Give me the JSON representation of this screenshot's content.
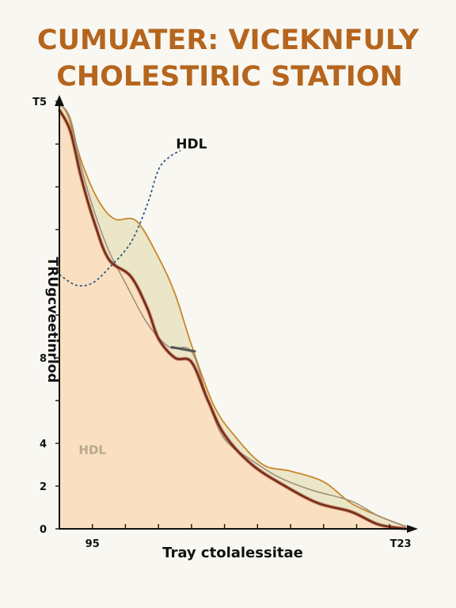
{
  "chart_data": {
    "type": "area",
    "title_lines": [
      "CUMUATER: VICEKNFULY",
      "CHOLESTIRIC STATION"
    ],
    "xlabel": "Tray ctolalessitae",
    "ylabel": "TRUgcveetinrlod",
    "x_tick_labels": [
      {
        "x": 95,
        "label": "95"
      },
      {
        "x": 123,
        "label": "T23"
      }
    ],
    "y_tick_labels": [
      {
        "y": 0,
        "label": "0"
      },
      {
        "y": 2,
        "label": "2"
      },
      {
        "y": 4,
        "label": "4"
      },
      {
        "y": 8,
        "label": "8"
      },
      {
        "y": 20,
        "label": "T5"
      }
    ],
    "xlim": [
      92,
      124
    ],
    "ylim": [
      0,
      20
    ],
    "annotations": [
      {
        "text": "HDL",
        "x": 104,
        "y": 17.8,
        "color": "#111111"
      },
      {
        "text": "HDL",
        "x": 95,
        "y": 3.5,
        "color": "#b8a88e"
      }
    ],
    "series": [
      {
        "name": "",
        "role": "upper-band",
        "color": "#c9872a",
        "values": [
          {
            "x": 92.0,
            "y": 19.9
          },
          {
            "x": 92.8,
            "y": 19.3
          },
          {
            "x": 94.0,
            "y": 17.2
          },
          {
            "x": 95.5,
            "y": 15.4
          },
          {
            "x": 97.0,
            "y": 14.5
          },
          {
            "x": 99.0,
            "y": 14.4
          },
          {
            "x": 101.0,
            "y": 12.7
          },
          {
            "x": 102.5,
            "y": 11.0
          },
          {
            "x": 104.0,
            "y": 8.6
          },
          {
            "x": 106.0,
            "y": 5.8
          },
          {
            "x": 108.0,
            "y": 4.3
          },
          {
            "x": 110.5,
            "y": 3.0
          },
          {
            "x": 113.0,
            "y": 2.7
          },
          {
            "x": 116.0,
            "y": 2.2
          },
          {
            "x": 118.5,
            "y": 1.2
          },
          {
            "x": 121.0,
            "y": 0.6
          },
          {
            "x": 123.5,
            "y": 0.1
          }
        ]
      },
      {
        "name": "",
        "role": "middle-line",
        "color": "#9a8c7a",
        "values": [
          {
            "x": 92.0,
            "y": 19.9
          },
          {
            "x": 93.0,
            "y": 19.2
          },
          {
            "x": 94.0,
            "y": 16.9
          },
          {
            "x": 95.2,
            "y": 14.8
          },
          {
            "x": 96.5,
            "y": 13.0
          },
          {
            "x": 98.0,
            "y": 11.5
          },
          {
            "x": 100.0,
            "y": 9.6
          },
          {
            "x": 102.0,
            "y": 8.5
          },
          {
            "x": 104.0,
            "y": 8.3
          },
          {
            "x": 105.5,
            "y": 6.0
          },
          {
            "x": 107.0,
            "y": 4.2
          },
          {
            "x": 109.5,
            "y": 3.2
          },
          {
            "x": 112.0,
            "y": 2.4
          },
          {
            "x": 115.0,
            "y": 1.8
          },
          {
            "x": 118.5,
            "y": 1.3
          },
          {
            "x": 121.0,
            "y": 0.6
          },
          {
            "x": 123.5,
            "y": 0.1
          }
        ]
      },
      {
        "name": "",
        "role": "lower-line",
        "color": "#7a2e1a",
        "values": [
          {
            "x": 92.0,
            "y": 19.6
          },
          {
            "x": 93.0,
            "y": 18.6
          },
          {
            "x": 94.0,
            "y": 16.4
          },
          {
            "x": 95.2,
            "y": 14.3
          },
          {
            "x": 96.5,
            "y": 12.6
          },
          {
            "x": 98.5,
            "y": 11.8
          },
          {
            "x": 100.0,
            "y": 10.3
          },
          {
            "x": 101.0,
            "y": 8.9
          },
          {
            "x": 102.5,
            "y": 8.0
          },
          {
            "x": 104.0,
            "y": 7.8
          },
          {
            "x": 105.5,
            "y": 6.0
          },
          {
            "x": 107.0,
            "y": 4.4
          },
          {
            "x": 109.5,
            "y": 3.0
          },
          {
            "x": 112.5,
            "y": 2.0
          },
          {
            "x": 115.5,
            "y": 1.2
          },
          {
            "x": 118.5,
            "y": 0.8
          },
          {
            "x": 121.0,
            "y": 0.2
          },
          {
            "x": 123.5,
            "y": 0.0
          }
        ]
      },
      {
        "name": "HDL",
        "role": "dashed-line",
        "color": "#2d5a8c",
        "values": [
          {
            "x": 92.0,
            "y": 11.9
          },
          {
            "x": 93.5,
            "y": 11.4
          },
          {
            "x": 95.0,
            "y": 11.5
          },
          {
            "x": 96.5,
            "y": 12.2
          },
          {
            "x": 98.5,
            "y": 13.4
          },
          {
            "x": 100.0,
            "y": 15.2
          },
          {
            "x": 101.0,
            "y": 16.8
          },
          {
            "x": 102.0,
            "y": 17.4
          },
          {
            "x": 103.0,
            "y": 17.7
          }
        ]
      }
    ]
  }
}
